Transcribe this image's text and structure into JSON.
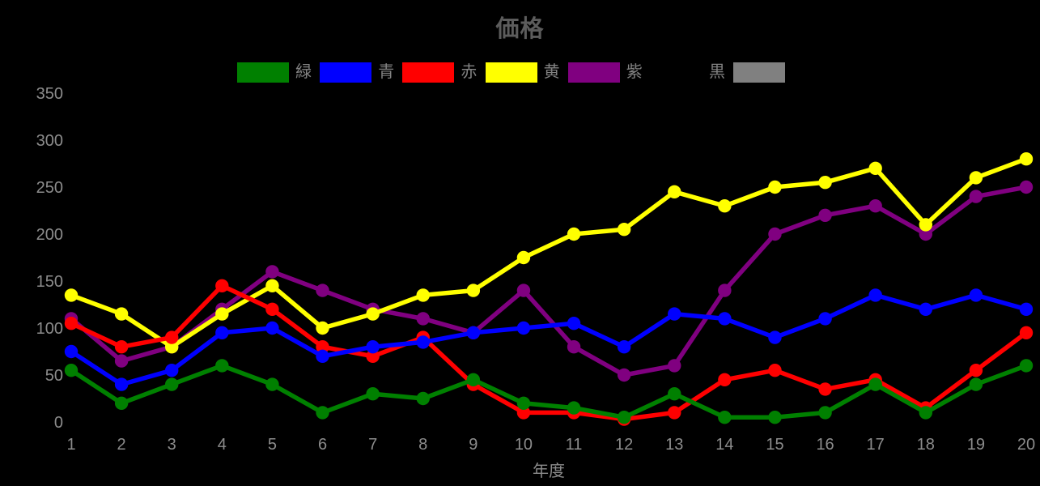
{
  "title": "価格",
  "colors": {
    "background": "#000000",
    "title_text": "#5c5c5c",
    "tick_text": "#8c8c8c",
    "legend_text": "#828282"
  },
  "legend": {
    "items": [
      {
        "label": "緑",
        "key": "green",
        "color": "#008000"
      },
      {
        "label": "青",
        "key": "blue",
        "color": "#0000ff"
      },
      {
        "label": "赤",
        "key": "red",
        "color": "#ff0000"
      },
      {
        "label": "黄",
        "key": "yellow",
        "color": "#ffff00"
      },
      {
        "label": "紫",
        "key": "purple",
        "color": "#800080"
      },
      {
        "label": "黒",
        "key": "black",
        "color": "#000000"
      },
      {
        "label": "",
        "key": "gray",
        "color": "#808080"
      }
    ]
  },
  "chart_data": {
    "type": "line",
    "title": "価格",
    "xlabel": "年度",
    "ylabel": "",
    "x": [
      1,
      2,
      3,
      4,
      5,
      6,
      7,
      8,
      9,
      10,
      11,
      12,
      13,
      14,
      15,
      16,
      17,
      18,
      19,
      20
    ],
    "y_ticks": [
      0,
      50,
      100,
      150,
      200,
      250,
      300,
      350
    ],
    "ylim": [
      0,
      350
    ],
    "grid": false,
    "legend_position": "top",
    "marker": "circle",
    "series": [
      {
        "name": "緑",
        "key": "green",
        "color": "#008000",
        "values": [
          55,
          20,
          40,
          60,
          40,
          10,
          30,
          25,
          45,
          20,
          15,
          5,
          30,
          5,
          5,
          10,
          40,
          10,
          40,
          60
        ]
      },
      {
        "name": "青",
        "key": "blue",
        "color": "#0000ff",
        "values": [
          75,
          40,
          55,
          95,
          100,
          70,
          80,
          85,
          95,
          100,
          105,
          80,
          115,
          110,
          90,
          110,
          135,
          120,
          135,
          120
        ]
      },
      {
        "name": "赤",
        "key": "red",
        "color": "#ff0000",
        "values": [
          105,
          80,
          90,
          145,
          120,
          80,
          70,
          90,
          40,
          10,
          10,
          3,
          10,
          45,
          55,
          35,
          45,
          15,
          55,
          95
        ]
      },
      {
        "name": "黄",
        "key": "yellow",
        "color": "#ffff00",
        "values": [
          135,
          115,
          80,
          115,
          145,
          100,
          115,
          135,
          140,
          175,
          200,
          205,
          245,
          230,
          250,
          255,
          270,
          210,
          260,
          280
        ]
      },
      {
        "name": "紫",
        "key": "purple",
        "color": "#800080",
        "values": [
          110,
          65,
          80,
          120,
          160,
          140,
          120,
          110,
          95,
          140,
          80,
          50,
          60,
          140,
          200,
          220,
          230,
          200,
          240,
          250
        ]
      },
      {
        "name": "黒",
        "key": "black",
        "color": "#000000",
        "values": []
      },
      {
        "name": "",
        "key": "gray",
        "color": "#808080",
        "values": []
      }
    ]
  }
}
